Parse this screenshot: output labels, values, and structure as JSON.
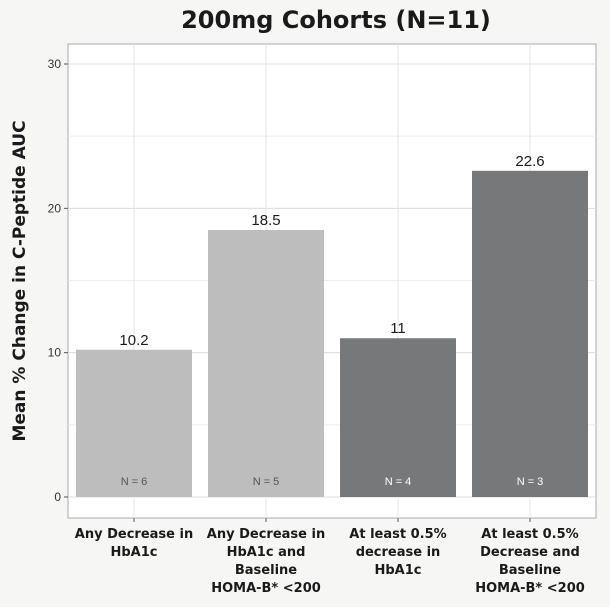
{
  "chart_data": {
    "type": "bar",
    "title": "200mg Cohorts (N=11)",
    "xlabel": "",
    "ylabel": "Mean % Change in C-Peptide AUC",
    "ylim": [
      0,
      30
    ],
    "yticks": [
      0,
      10,
      20,
      30
    ],
    "grid": true,
    "legend": "none",
    "categories": [
      [
        "Any Decrease in",
        "HbA1c"
      ],
      [
        "Any Decrease in",
        "HbA1c  and",
        "Baseline",
        "HOMA-B* <200"
      ],
      [
        "At least 0.5%",
        "decrease in",
        "HbA1c"
      ],
      [
        "At least 0.5%",
        "Decrease and",
        "Baseline",
        "HOMA-B* <200"
      ]
    ],
    "values": [
      10.2,
      18.5,
      11,
      22.6
    ],
    "value_labels": [
      "10.2",
      "18.5",
      "11",
      "22.6"
    ],
    "n_labels": [
      "N = 6",
      "N = 5",
      "N = 4",
      "N = 3"
    ],
    "bar_colors": [
      "#bdbdbd",
      "#bdbdbd",
      "#77787a",
      "#77787a"
    ],
    "n_label_colors": [
      "#555555",
      "#555555",
      "#ffffff",
      "#ffffff"
    ]
  }
}
